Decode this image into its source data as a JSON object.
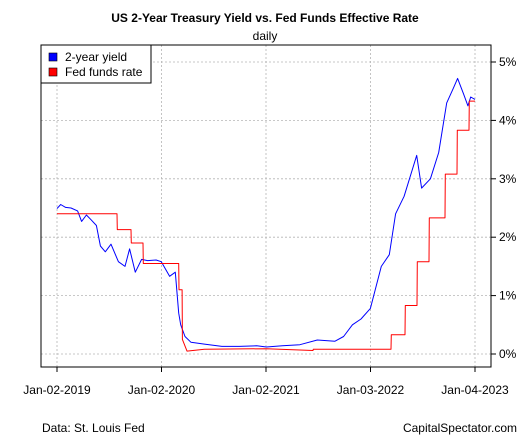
{
  "footer": {
    "source": "Data: St. Louis Fed",
    "credit": "CapitalSpectator.com"
  },
  "chart_data": {
    "type": "line",
    "title": "US 2-Year Treasury Yield vs. Fed Funds Effective Rate",
    "subtitle": "daily",
    "xlabel": "",
    "ylabel": "",
    "x_ticks": [
      "Jan-02-2019",
      "Jan-02-2020",
      "Jan-02-2021",
      "Jan-03-2022",
      "Jan-04-2023"
    ],
    "y_ticks": [
      "0%",
      "1%",
      "2%",
      "3%",
      "4%",
      "5%"
    ],
    "ylim": [
      0,
      5
    ],
    "xlim": [
      "2019-01-02",
      "2023-01-04"
    ],
    "y_axis_side": "right",
    "grid": true,
    "legend": {
      "position": "top-left"
    },
    "series": [
      {
        "name": "2-year yield",
        "color": "#0000ff",
        "points": [
          [
            "2019-01-02",
            2.49
          ],
          [
            "2019-01-15",
            2.56
          ],
          [
            "2019-02-01",
            2.51
          ],
          [
            "2019-02-20",
            2.5
          ],
          [
            "2019-03-15",
            2.45
          ],
          [
            "2019-03-29",
            2.27
          ],
          [
            "2019-04-15",
            2.38
          ],
          [
            "2019-05-01",
            2.3
          ],
          [
            "2019-05-20",
            2.2
          ],
          [
            "2019-06-03",
            1.85
          ],
          [
            "2019-06-20",
            1.75
          ],
          [
            "2019-07-10",
            1.88
          ],
          [
            "2019-08-05",
            1.58
          ],
          [
            "2019-08-28",
            1.5
          ],
          [
            "2019-09-13",
            1.8
          ],
          [
            "2019-10-03",
            1.4
          ],
          [
            "2019-10-25",
            1.62
          ],
          [
            "2019-11-15",
            1.6
          ],
          [
            "2019-12-15",
            1.61
          ],
          [
            "2020-01-02",
            1.58
          ],
          [
            "2020-01-31",
            1.33
          ],
          [
            "2020-02-20",
            1.4
          ],
          [
            "2020-03-03",
            0.7
          ],
          [
            "2020-03-10",
            0.5
          ],
          [
            "2020-03-25",
            0.3
          ],
          [
            "2020-04-15",
            0.2
          ],
          [
            "2020-06-01",
            0.17
          ],
          [
            "2020-08-01",
            0.13
          ],
          [
            "2020-10-01",
            0.13
          ],
          [
            "2020-12-01",
            0.14
          ],
          [
            "2021-01-04",
            0.12
          ],
          [
            "2021-03-01",
            0.14
          ],
          [
            "2021-05-01",
            0.16
          ],
          [
            "2021-07-01",
            0.24
          ],
          [
            "2021-09-01",
            0.22
          ],
          [
            "2021-10-01",
            0.3
          ],
          [
            "2021-11-01",
            0.5
          ],
          [
            "2021-12-01",
            0.6
          ],
          [
            "2022-01-03",
            0.78
          ],
          [
            "2022-02-10",
            1.5
          ],
          [
            "2022-03-10",
            1.7
          ],
          [
            "2022-04-01",
            2.4
          ],
          [
            "2022-05-01",
            2.7
          ],
          [
            "2022-06-14",
            3.4
          ],
          [
            "2022-07-01",
            2.84
          ],
          [
            "2022-08-01",
            3.0
          ],
          [
            "2022-08-30",
            3.45
          ],
          [
            "2022-09-27",
            4.3
          ],
          [
            "2022-10-20",
            4.55
          ],
          [
            "2022-11-04",
            4.72
          ],
          [
            "2022-11-25",
            4.45
          ],
          [
            "2022-12-10",
            4.25
          ],
          [
            "2022-12-20",
            4.4
          ],
          [
            "2023-01-04",
            4.36
          ]
        ]
      },
      {
        "name": "Fed funds rate",
        "color": "#ff0000",
        "points": [
          [
            "2019-01-02",
            2.4
          ],
          [
            "2019-07-31",
            2.4
          ],
          [
            "2019-08-01",
            2.13
          ],
          [
            "2019-09-18",
            2.13
          ],
          [
            "2019-09-19",
            1.9
          ],
          [
            "2019-10-30",
            1.9
          ],
          [
            "2019-10-31",
            1.55
          ],
          [
            "2020-03-03",
            1.55
          ],
          [
            "2020-03-04",
            1.1
          ],
          [
            "2020-03-15",
            1.1
          ],
          [
            "2020-03-16",
            0.25
          ],
          [
            "2020-04-01",
            0.05
          ],
          [
            "2020-06-01",
            0.08
          ],
          [
            "2021-01-04",
            0.09
          ],
          [
            "2021-06-16",
            0.06
          ],
          [
            "2021-06-17",
            0.08
          ],
          [
            "2022-03-16",
            0.08
          ],
          [
            "2022-03-17",
            0.33
          ],
          [
            "2022-05-04",
            0.33
          ],
          [
            "2022-05-05",
            0.83
          ],
          [
            "2022-06-15",
            0.83
          ],
          [
            "2022-06-16",
            1.58
          ],
          [
            "2022-07-27",
            1.58
          ],
          [
            "2022-07-28",
            2.33
          ],
          [
            "2022-09-21",
            2.33
          ],
          [
            "2022-09-22",
            3.08
          ],
          [
            "2022-11-02",
            3.08
          ],
          [
            "2022-11-03",
            3.83
          ],
          [
            "2022-12-14",
            3.83
          ],
          [
            "2022-12-15",
            4.33
          ],
          [
            "2023-01-04",
            4.33
          ]
        ]
      }
    ]
  }
}
